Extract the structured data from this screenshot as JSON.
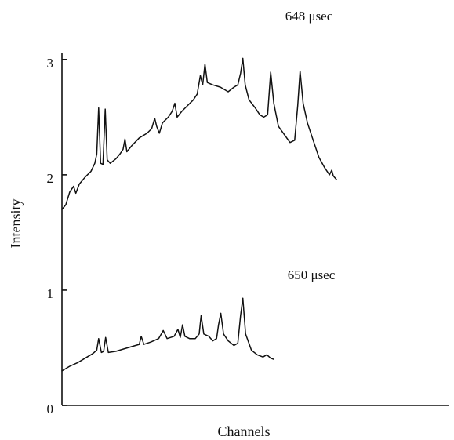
{
  "chart_data": {
    "type": "line",
    "xlabel": "Channels",
    "ylabel": "Intensity",
    "ylim": [
      0,
      3.4
    ],
    "xlim": [
      0,
      1
    ],
    "yticks": [
      "0",
      "1",
      "2",
      "3"
    ],
    "grid": false,
    "legend": "none",
    "annotations": [
      {
        "text": "648 μsec",
        "series": "upper"
      },
      {
        "text": "650 μsec",
        "series": "lower"
      }
    ],
    "series": [
      {
        "points": [
          [
            0.0,
            1.7
          ],
          [
            0.01,
            1.74
          ],
          [
            0.02,
            1.85
          ],
          [
            0.03,
            1.9
          ],
          [
            0.036,
            1.84
          ],
          [
            0.045,
            1.92
          ],
          [
            0.06,
            1.98
          ],
          [
            0.075,
            2.03
          ],
          [
            0.085,
            2.1
          ],
          [
            0.09,
            2.18
          ],
          [
            0.095,
            2.58
          ],
          [
            0.1,
            2.1
          ],
          [
            0.106,
            2.09
          ],
          [
            0.112,
            2.57
          ],
          [
            0.117,
            2.13
          ],
          [
            0.125,
            2.1
          ],
          [
            0.14,
            2.14
          ],
          [
            0.15,
            2.18
          ],
          [
            0.158,
            2.22
          ],
          [
            0.163,
            2.31
          ],
          [
            0.168,
            2.2
          ],
          [
            0.18,
            2.25
          ],
          [
            0.2,
            2.32
          ],
          [
            0.22,
            2.36
          ],
          [
            0.232,
            2.4
          ],
          [
            0.24,
            2.49
          ],
          [
            0.245,
            2.42
          ],
          [
            0.252,
            2.36
          ],
          [
            0.26,
            2.45
          ],
          [
            0.275,
            2.5
          ],
          [
            0.285,
            2.55
          ],
          [
            0.292,
            2.62
          ],
          [
            0.298,
            2.5
          ],
          [
            0.31,
            2.55
          ],
          [
            0.325,
            2.6
          ],
          [
            0.34,
            2.65
          ],
          [
            0.35,
            2.7
          ],
          [
            0.358,
            2.86
          ],
          [
            0.364,
            2.78
          ],
          [
            0.37,
            2.96
          ],
          [
            0.376,
            2.8
          ],
          [
            0.39,
            2.78
          ],
          [
            0.41,
            2.76
          ],
          [
            0.43,
            2.72
          ],
          [
            0.445,
            2.76
          ],
          [
            0.455,
            2.78
          ],
          [
            0.462,
            2.88
          ],
          [
            0.468,
            3.01
          ],
          [
            0.474,
            2.78
          ],
          [
            0.484,
            2.65
          ],
          [
            0.5,
            2.58
          ],
          [
            0.512,
            2.52
          ],
          [
            0.522,
            2.5
          ],
          [
            0.532,
            2.52
          ],
          [
            0.54,
            2.89
          ],
          [
            0.548,
            2.62
          ],
          [
            0.56,
            2.42
          ],
          [
            0.575,
            2.35
          ],
          [
            0.59,
            2.28
          ],
          [
            0.602,
            2.3
          ],
          [
            0.61,
            2.6
          ],
          [
            0.616,
            2.9
          ],
          [
            0.624,
            2.62
          ],
          [
            0.635,
            2.45
          ],
          [
            0.65,
            2.3
          ],
          [
            0.665,
            2.15
          ],
          [
            0.68,
            2.06
          ],
          [
            0.692,
            2.0
          ],
          [
            0.698,
            2.04
          ],
          [
            0.702,
            1.99
          ],
          [
            0.71,
            1.96
          ]
        ]
      },
      {
        "points": [
          [
            0.0,
            0.3
          ],
          [
            0.02,
            0.34
          ],
          [
            0.04,
            0.37
          ],
          [
            0.06,
            0.41
          ],
          [
            0.08,
            0.45
          ],
          [
            0.09,
            0.48
          ],
          [
            0.095,
            0.58
          ],
          [
            0.102,
            0.46
          ],
          [
            0.108,
            0.47
          ],
          [
            0.113,
            0.59
          ],
          [
            0.12,
            0.46
          ],
          [
            0.14,
            0.47
          ],
          [
            0.16,
            0.49
          ],
          [
            0.18,
            0.51
          ],
          [
            0.2,
            0.53
          ],
          [
            0.205,
            0.6
          ],
          [
            0.212,
            0.53
          ],
          [
            0.23,
            0.55
          ],
          [
            0.25,
            0.58
          ],
          [
            0.262,
            0.65
          ],
          [
            0.272,
            0.58
          ],
          [
            0.29,
            0.6
          ],
          [
            0.3,
            0.66
          ],
          [
            0.306,
            0.59
          ],
          [
            0.312,
            0.7
          ],
          [
            0.318,
            0.6
          ],
          [
            0.33,
            0.58
          ],
          [
            0.345,
            0.58
          ],
          [
            0.355,
            0.62
          ],
          [
            0.36,
            0.78
          ],
          [
            0.367,
            0.62
          ],
          [
            0.38,
            0.6
          ],
          [
            0.39,
            0.56
          ],
          [
            0.4,
            0.58
          ],
          [
            0.405,
            0.7
          ],
          [
            0.411,
            0.8
          ],
          [
            0.418,
            0.62
          ],
          [
            0.43,
            0.56
          ],
          [
            0.445,
            0.52
          ],
          [
            0.455,
            0.54
          ],
          [
            0.462,
            0.78
          ],
          [
            0.468,
            0.93
          ],
          [
            0.475,
            0.62
          ],
          [
            0.49,
            0.48
          ],
          [
            0.505,
            0.44
          ],
          [
            0.52,
            0.42
          ],
          [
            0.53,
            0.44
          ],
          [
            0.54,
            0.41
          ],
          [
            0.548,
            0.4
          ]
        ]
      }
    ]
  }
}
